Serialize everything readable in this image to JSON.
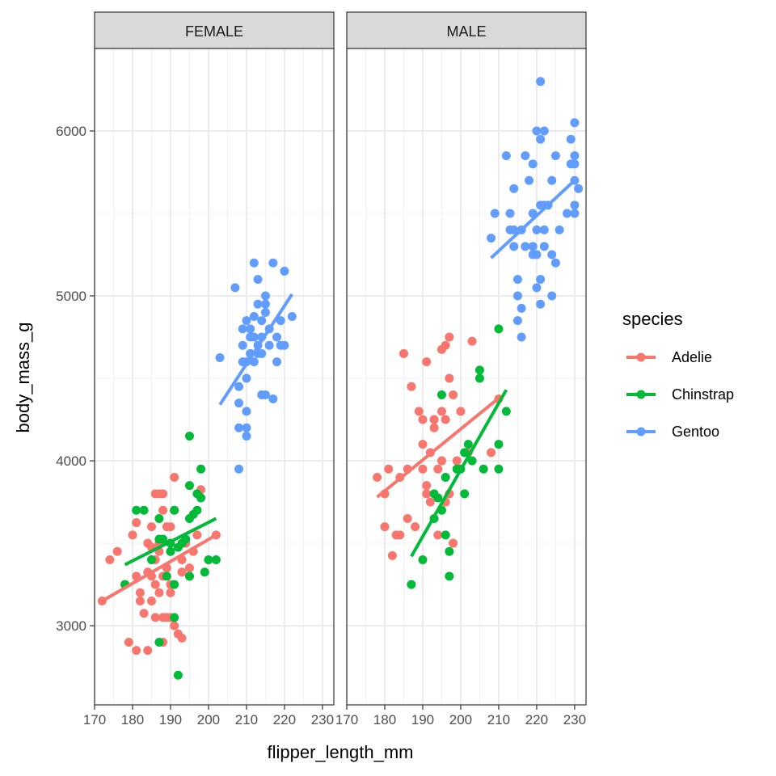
{
  "chart_data": {
    "type": "scatter",
    "facet_by": "sex",
    "facets": [
      "FEMALE",
      "MALE"
    ],
    "xlabel": "flipper_length_mm",
    "ylabel": "body_mass_g",
    "xlim": [
      170,
      233
    ],
    "ylim": [
      2520,
      6500
    ],
    "x_ticks": [
      170,
      180,
      190,
      200,
      210,
      220,
      230
    ],
    "y_ticks": [
      3000,
      4000,
      5000,
      6000
    ],
    "grid": true,
    "legend": {
      "title": "species",
      "position": "right"
    },
    "series": [
      {
        "name": "Adelie",
        "color": "#F8766D",
        "fit": {
          "FEMALE": {
            "x": [
              172,
              202
            ],
            "y": [
              3150,
              3550
            ]
          },
          "MALE": {
            "x": [
              178,
              210
            ],
            "y": [
              3780,
              4380
            ]
          }
        },
        "points": {
          "FEMALE": [
            [
              172,
              3150
            ],
            [
              174,
              3400
            ],
            [
              176,
              3450
            ],
            [
              178,
              3250
            ],
            [
              179,
              2900
            ],
            [
              180,
              3550
            ],
            [
              181,
              2850
            ],
            [
              181,
              3300
            ],
            [
              181,
              3625
            ],
            [
              182,
              3200
            ],
            [
              182,
              3150
            ],
            [
              183,
              3075
            ],
            [
              184,
              3325
            ],
            [
              184,
              2850
            ],
            [
              184,
              3500
            ],
            [
              185,
              3475
            ],
            [
              185,
              3600
            ],
            [
              185,
              3300
            ],
            [
              185,
              3150
            ],
            [
              186,
              3050
            ],
            [
              186,
              3800
            ],
            [
              186,
              3400
            ],
            [
              186,
              3250
            ],
            [
              187,
              3800
            ],
            [
              187,
              3200
            ],
            [
              187,
              3450
            ],
            [
              187,
              3500
            ],
            [
              188,
              2900
            ],
            [
              188,
              3300
            ],
            [
              188,
              3050
            ],
            [
              188,
              3700
            ],
            [
              188,
              3800
            ],
            [
              189,
              3600
            ],
            [
              189,
              3350
            ],
            [
              189,
              3050
            ],
            [
              190,
              3200
            ],
            [
              190,
              3450
            ],
            [
              190,
              3600
            ],
            [
              190,
              3050
            ],
            [
              190,
              3250
            ],
            [
              191,
              3900
            ],
            [
              191,
              3700
            ],
            [
              191,
              3000
            ],
            [
              192,
              2950
            ],
            [
              193,
              2925
            ],
            [
              193,
              3325
            ],
            [
              193,
              3400
            ],
            [
              194,
              3500
            ],
            [
              195,
              3350
            ],
            [
              195,
              3300
            ],
            [
              196,
              3450
            ],
            [
              197,
              3550
            ],
            [
              198,
              3825
            ],
            [
              202,
              3550
            ]
          ],
          "MALE": [
            [
              178,
              3900
            ],
            [
              180,
              3600
            ],
            [
              180,
              3800
            ],
            [
              181,
              3950
            ],
            [
              182,
              3425
            ],
            [
              183,
              3550
            ],
            [
              184,
              3550
            ],
            [
              184,
              3900
            ],
            [
              185,
              4650
            ],
            [
              186,
              3650
            ],
            [
              186,
              3950
            ],
            [
              187,
              4450
            ],
            [
              188,
              3600
            ],
            [
              189,
              4300
            ],
            [
              190,
              3950
            ],
            [
              190,
              4100
            ],
            [
              190,
              4250
            ],
            [
              191,
              3850
            ],
            [
              191,
              4600
            ],
            [
              191,
              3800
            ],
            [
              192,
              4050
            ],
            [
              192,
              3750
            ],
            [
              193,
              4200
            ],
            [
              193,
              4250
            ],
            [
              194,
              3950
            ],
            [
              194,
              3550
            ],
            [
              195,
              4000
            ],
            [
              195,
              4300
            ],
            [
              195,
              4675
            ],
            [
              196,
              4700
            ],
            [
              196,
              4250
            ],
            [
              196,
              3750
            ],
            [
              197,
              4750
            ],
            [
              197,
              4500
            ],
            [
              197,
              3800
            ],
            [
              198,
              3500
            ],
            [
              198,
              4400
            ],
            [
              199,
              3950
            ],
            [
              199,
              4000
            ],
            [
              200,
              4300
            ],
            [
              202,
              4050
            ],
            [
              203,
              4725
            ],
            [
              208,
              4050
            ],
            [
              210,
              4375
            ]
          ]
        }
      },
      {
        "name": "Chinstrap",
        "color": "#00BA38",
        "fit": {
          "FEMALE": {
            "x": [
              178,
              202
            ],
            "y": [
              3370,
              3650
            ]
          },
          "MALE": {
            "x": [
              187,
              212
            ],
            "y": [
              3420,
              4430
            ]
          }
        },
        "points": {
          "FEMALE": [
            [
              178,
              3250
            ],
            [
              181,
              3700
            ],
            [
              183,
              3700
            ],
            [
              185,
              3400
            ],
            [
              187,
              2900
            ],
            [
              187,
              3650
            ],
            [
              187,
              3525
            ],
            [
              188,
              3525
            ],
            [
              189,
              3300
            ],
            [
              190,
              3450
            ],
            [
              190,
              3500
            ],
            [
              191,
              3250
            ],
            [
              191,
              3050
            ],
            [
              191,
              3700
            ],
            [
              192,
              2700
            ],
            [
              192,
              3475
            ],
            [
              193,
              3500
            ],
            [
              194,
              3525
            ],
            [
              195,
              3300
            ],
            [
              195,
              3650
            ],
            [
              195,
              4150
            ],
            [
              195,
              3850
            ],
            [
              196,
              3675
            ],
            [
              197,
              3700
            ],
            [
              197,
              3800
            ],
            [
              198,
              3950
            ],
            [
              198,
              3775
            ],
            [
              199,
              3325
            ],
            [
              200,
              3400
            ],
            [
              202,
              3400
            ]
          ],
          "MALE": [
            [
              187,
              3250
            ],
            [
              190,
              3400
            ],
            [
              193,
              3650
            ],
            [
              193,
              3800
            ],
            [
              194,
              3775
            ],
            [
              195,
              3700
            ],
            [
              195,
              4400
            ],
            [
              196,
              3900
            ],
            [
              196,
              3550
            ],
            [
              197,
              3300
            ],
            [
              197,
              3450
            ],
            [
              199,
              3950
            ],
            [
              200,
              3950
            ],
            [
              201,
              3800
            ],
            [
              201,
              4050
            ],
            [
              202,
              4100
            ],
            [
              203,
              4000
            ],
            [
              205,
              4550
            ],
            [
              205,
              4500
            ],
            [
              206,
              3950
            ],
            [
              210,
              4800
            ],
            [
              210,
              4100
            ],
            [
              210,
              3950
            ],
            [
              212,
              4300
            ]
          ]
        }
      },
      {
        "name": "Gentoo",
        "color": "#619CFF",
        "fit": {
          "FEMALE": {
            "x": [
              203,
              222
            ],
            "y": [
              4340,
              5010
            ]
          },
          "MALE": {
            "x": [
              208,
              230
            ],
            "y": [
              5230,
              5700
            ]
          }
        },
        "points": {
          "FEMALE": [
            [
              203,
              4625
            ],
            [
              207,
              5050
            ],
            [
              208,
              3950
            ],
            [
              208,
              4200
            ],
            [
              208,
              4350
            ],
            [
              208,
              4450
            ],
            [
              209,
              4700
            ],
            [
              209,
              4600
            ],
            [
              209,
              4800
            ],
            [
              210,
              4600
            ],
            [
              210,
              4850
            ],
            [
              210,
              4200
            ],
            [
              210,
              4150
            ],
            [
              210,
              4300
            ],
            [
              210,
              4500
            ],
            [
              211,
              4800
            ],
            [
              211,
              4650
            ],
            [
              211,
              4750
            ],
            [
              212,
              4600
            ],
            [
              212,
              4750
            ],
            [
              212,
              5200
            ],
            [
              212,
              4875
            ],
            [
              213,
              4700
            ],
            [
              213,
              4650
            ],
            [
              213,
              4950
            ],
            [
              213,
              5100
            ],
            [
              214,
              4850
            ],
            [
              214,
              4400
            ],
            [
              214,
              4650
            ],
            [
              214,
              4750
            ],
            [
              215,
              4400
            ],
            [
              215,
              4950
            ],
            [
              215,
              5000
            ],
            [
              215,
              4900
            ],
            [
              216,
              4800
            ],
            [
              216,
              4700
            ],
            [
              217,
              4375
            ],
            [
              217,
              5200
            ],
            [
              218,
              4750
            ],
            [
              218,
              4600
            ],
            [
              219,
              4700
            ],
            [
              219,
              4850
            ],
            [
              220,
              4700
            ],
            [
              220,
              5150
            ],
            [
              222,
              4875
            ]
          ],
          "MALE": [
            [
              208,
              5350
            ],
            [
              209,
              5500
            ],
            [
              212,
              5850
            ],
            [
              213,
              5500
            ],
            [
              213,
              5400
            ],
            [
              214,
              5400
            ],
            [
              214,
              5650
            ],
            [
              214,
              5300
            ],
            [
              215,
              5100
            ],
            [
              215,
              4850
            ],
            [
              215,
              5000
            ],
            [
              216,
              5400
            ],
            [
              216,
              4925
            ],
            [
              216,
              4750
            ],
            [
              217,
              5850
            ],
            [
              217,
              5300
            ],
            [
              218,
              5700
            ],
            [
              219,
              5300
            ],
            [
              219,
              5250
            ],
            [
              219,
              5500
            ],
            [
              219,
              5800
            ],
            [
              220,
              6000
            ],
            [
              220,
              5400
            ],
            [
              220,
              5250
            ],
            [
              220,
              5050
            ],
            [
              221,
              5950
            ],
            [
              221,
              4950
            ],
            [
              221,
              5100
            ],
            [
              221,
              6300
            ],
            [
              221,
              5550
            ],
            [
              222,
              5550
            ],
            [
              222,
              5400
            ],
            [
              222,
              6000
            ],
            [
              222,
              5300
            ],
            [
              223,
              5550
            ],
            [
              224,
              5700
            ],
            [
              224,
              5250
            ],
            [
              224,
              5000
            ],
            [
              225,
              5200
            ],
            [
              225,
              5850
            ],
            [
              226,
              5400
            ],
            [
              228,
              5500
            ],
            [
              229,
              5950
            ],
            [
              229,
              5800
            ],
            [
              230,
              6050
            ],
            [
              230,
              5850
            ],
            [
              230,
              5700
            ],
            [
              230,
              5500
            ],
            [
              230,
              5550
            ],
            [
              230,
              5800
            ],
            [
              231,
              5650
            ]
          ]
        }
      }
    ]
  }
}
